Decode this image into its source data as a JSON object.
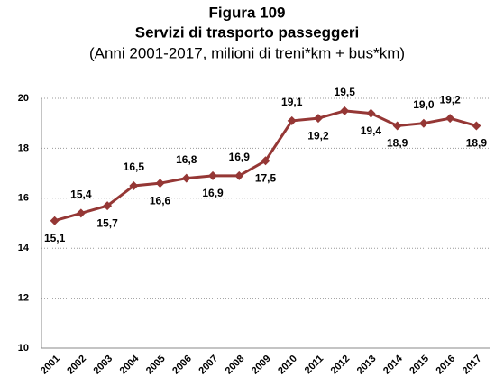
{
  "chart_data": {
    "type": "line",
    "title": "Figura 109",
    "subtitle": "Servizi di trasporto passeggeri",
    "note": "(Anni 2001-2017, milioni di treni*km + bus*km)",
    "categories": [
      "2001",
      "2002",
      "2003",
      "2004",
      "2005",
      "2006",
      "2007",
      "2008",
      "2009",
      "2010",
      "2011",
      "2012",
      "2013",
      "2014",
      "2015",
      "2016",
      "2017"
    ],
    "values": [
      15.1,
      15.4,
      15.7,
      16.5,
      16.6,
      16.8,
      16.9,
      16.9,
      17.5,
      19.1,
      19.2,
      19.5,
      19.4,
      18.9,
      19.0,
      19.2,
      18.9
    ],
    "value_labels": [
      "15,1",
      "15,4",
      "15,7",
      "16,5",
      "16,6",
      "16,8",
      "16,9",
      "16,9",
      "17,5",
      "19,1",
      "19,2",
      "19,5",
      "19,4",
      "18,9",
      "19,0",
      "19,2",
      "18,9"
    ],
    "color": "#953735",
    "ylim": [
      10,
      20
    ],
    "yticks": [
      10,
      12,
      14,
      16,
      18,
      20
    ],
    "grid": true
  }
}
